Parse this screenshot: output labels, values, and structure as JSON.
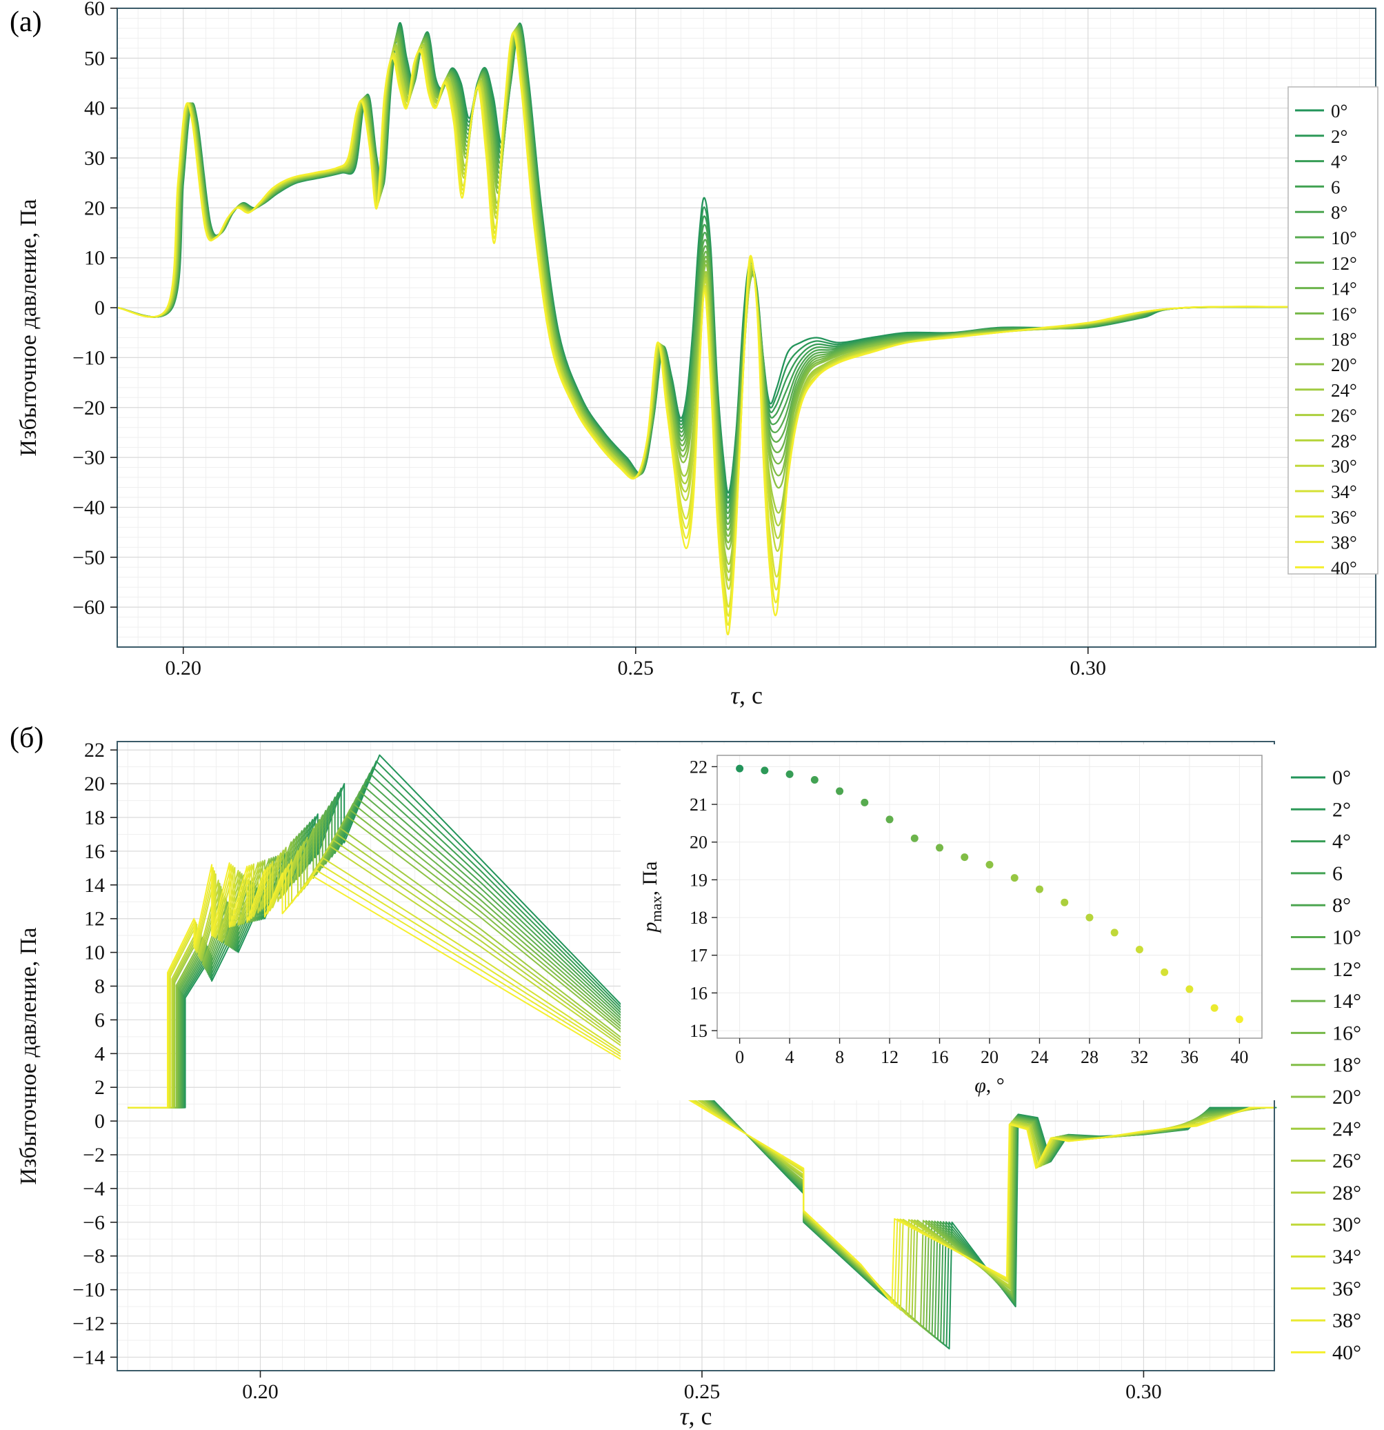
{
  "figure": {
    "panel_a_letter": "(a)",
    "panel_b_letter": "(б)"
  },
  "chart_data": [
    {
      "id": "a",
      "type": "line",
      "title": "",
      "xlabel": "τ, с",
      "ylabel": "Избыточное давление, Па",
      "xlim": [
        0.1927,
        0.3318
      ],
      "ylim": [
        -68,
        60
      ],
      "x_ticks": [
        0.2,
        0.25,
        0.3
      ],
      "y_ticks": [
        60,
        50,
        40,
        30,
        20,
        10,
        0,
        -10,
        -20,
        -30,
        -40,
        -50,
        -60
      ],
      "grid": true,
      "grid_minor_y": 2,
      "grid_minor_x": 0.0025,
      "legend_position": "right-inside-framed",
      "line_width": 2.3,
      "smooth": true,
      "color_start": "#22945a",
      "color_end": "#f5ef2e",
      "angles_deg": [
        0,
        2,
        4,
        6,
        8,
        10,
        12,
        14,
        16,
        18,
        20,
        24,
        26,
        28,
        30,
        34,
        36,
        38,
        40
      ],
      "legend_labels": [
        "0°",
        "2°",
        "4°",
        "6",
        "8°",
        "10°",
        "12°",
        "14°",
        "16°",
        "18°",
        "20°",
        "24°",
        "26°",
        "28°",
        "30°",
        "34°",
        "36°",
        "38°",
        "40°"
      ],
      "series_note": "curves for intermediate angles interpolate linearly between angle_0_curve and angle_40_curve by angle/40",
      "angle_0_curve": {
        "t": [
          0.1927,
          0.1988,
          0.2,
          0.2008,
          0.2016,
          0.203,
          0.2042,
          0.2055,
          0.2066,
          0.2078,
          0.209,
          0.2105,
          0.2125,
          0.215,
          0.2175,
          0.219,
          0.2199,
          0.2206,
          0.2214,
          0.2222,
          0.223,
          0.2239,
          0.2247,
          0.2255,
          0.2263,
          0.2271,
          0.2279,
          0.2287,
          0.2297,
          0.2307,
          0.2316,
          0.2325,
          0.2334,
          0.2343,
          0.2352,
          0.2362,
          0.2372,
          0.2382,
          0.2396,
          0.2415,
          0.244,
          0.2465,
          0.249,
          0.2508,
          0.252,
          0.253,
          0.254,
          0.2549,
          0.2556,
          0.2563,
          0.257,
          0.2576,
          0.2583,
          0.259,
          0.2597,
          0.2603,
          0.2611,
          0.2619,
          0.2626,
          0.2634,
          0.2641,
          0.2648,
          0.2656,
          0.2668,
          0.2682,
          0.27,
          0.2725,
          0.276,
          0.28,
          0.285,
          0.29,
          0.295,
          0.3,
          0.306,
          0.311,
          0.3318
        ],
        "p": [
          0,
          0,
          25,
          40,
          37,
          17,
          15,
          19,
          21,
          20,
          21,
          23,
          25,
          26,
          27,
          28,
          40,
          42,
          30,
          25,
          45,
          57,
          50,
          45,
          52,
          55,
          46,
          44,
          48,
          45,
          38,
          45,
          48,
          42,
          33,
          45,
          57,
          45,
          20,
          -5,
          -18,
          -25,
          -30,
          -33,
          -22,
          -8,
          -14,
          -22,
          -18,
          -5,
          14,
          22,
          12,
          -14,
          -30,
          -37,
          -25,
          -2,
          9,
          4,
          -10,
          -19,
          -16,
          -9,
          -7,
          -6,
          -7,
          -6,
          -5,
          -5,
          -4,
          -4,
          -4,
          -2,
          0,
          0
        ]
      },
      "angle_40_curve": {
        "t": [
          0.1927,
          0.1982,
          0.1994,
          0.2002,
          0.201,
          0.2024,
          0.2036,
          0.2049,
          0.206,
          0.2072,
          0.2084,
          0.2099,
          0.2119,
          0.2144,
          0.2169,
          0.2182,
          0.2191,
          0.2198,
          0.2206,
          0.2214,
          0.2222,
          0.2231,
          0.2239,
          0.2247,
          0.2255,
          0.2263,
          0.2271,
          0.2279,
          0.2289,
          0.2299,
          0.2308,
          0.2317,
          0.2326,
          0.2335,
          0.2344,
          0.2354,
          0.2364,
          0.2374,
          0.2388,
          0.2407,
          0.2432,
          0.2457,
          0.2482,
          0.25,
          0.2513,
          0.2524,
          0.2534,
          0.2543,
          0.255,
          0.2557,
          0.2564,
          0.257,
          0.2576,
          0.2583,
          0.259,
          0.2597,
          0.2603,
          0.2611,
          0.2619,
          0.2626,
          0.2634,
          0.2641,
          0.2648,
          0.2656,
          0.2668,
          0.2682,
          0.27,
          0.2725,
          0.276,
          0.28,
          0.285,
          0.29,
          0.295,
          0.3,
          0.3105,
          0.3318
        ],
        "p": [
          0,
          0,
          25,
          40,
          37,
          16,
          14,
          18,
          20,
          19,
          21,
          24,
          26,
          27,
          28,
          30,
          39,
          41,
          32,
          20,
          42,
          50,
          44,
          40,
          49,
          51,
          43,
          40,
          45,
          37,
          22,
          36,
          44,
          30,
          13,
          38,
          55,
          43,
          16,
          -8,
          -20,
          -27,
          -32,
          -34,
          -26,
          -7,
          -20,
          -33,
          -44,
          -48,
          -38,
          -15,
          3,
          -15,
          -42,
          -58,
          -65,
          -45,
          -12,
          10,
          0,
          -30,
          -52,
          -61,
          -35,
          -20,
          -14,
          -11,
          -9,
          -7,
          -6,
          -5,
          -4,
          -3,
          0,
          0
        ]
      }
    },
    {
      "id": "b",
      "type": "line",
      "title": "",
      "xlabel": "τ, с",
      "ylabel": "Избыточное давление, Па",
      "xlim": [
        0.1838,
        0.3148
      ],
      "ylim": [
        -14.8,
        22.5
      ],
      "x_ticks": [
        0.2,
        0.25,
        0.3
      ],
      "y_ticks": [
        22,
        20,
        18,
        16,
        14,
        12,
        10,
        8,
        6,
        4,
        2,
        0,
        -2,
        -4,
        -6,
        -8,
        -10,
        -12,
        -14
      ],
      "grid": true,
      "grid_minor_y": 1,
      "grid_minor_x": 0.0025,
      "legend_position": "right-outside",
      "line_width": 2.0,
      "smooth": false,
      "color_start": "#22945a",
      "color_end": "#f5ef2e",
      "angles_deg": [
        0,
        2,
        4,
        6,
        8,
        10,
        12,
        14,
        16,
        18,
        20,
        24,
        26,
        28,
        30,
        34,
        36,
        38,
        40
      ],
      "legend_labels": [
        "0°",
        "2°",
        "4°",
        "6",
        "8°",
        "10°",
        "12°",
        "14°",
        "16°",
        "18°",
        "20°",
        "24°",
        "26°",
        "28°",
        "30°",
        "34°",
        "36°",
        "38°",
        "40°"
      ],
      "series_note": "sawtooth waveforms; curves for intermediate angles interpolate linearly between angle_0_curve and angle_40_curve by angle/40",
      "angle_0_curve": {
        "t": [
          0.185,
          0.1915,
          0.1915,
          0.1945,
          0.1945,
          0.1975,
          0.1975,
          0.2005,
          0.2005,
          0.2035,
          0.2035,
          0.2065,
          0.2065,
          0.2095,
          0.2095,
          0.2135,
          0.225,
          0.2615,
          0.2615,
          0.27,
          0.27,
          0.278,
          0.2783,
          0.2855,
          0.2858,
          0.288,
          0.2895,
          0.2915,
          0.295,
          0.3,
          0.305,
          0.3075,
          0.315,
          0.3148
        ],
        "p": [
          0.8,
          0.8,
          7.3,
          9.8,
          8.3,
          11.5,
          10.0,
          13.5,
          12.0,
          16.0,
          14.0,
          18.2,
          15.8,
          20.0,
          16.5,
          21.7,
          15.5,
          -4.3,
          -6.0,
          -10.1,
          -10.1,
          -13.5,
          -6.0,
          -11.0,
          0.4,
          0.2,
          -2.4,
          -0.8,
          -0.9,
          -0.8,
          -0.5,
          0.8,
          0.8,
          0.8
        ]
      },
      "angle_40_curve": {
        "t": [
          0.185,
          0.1895,
          0.1895,
          0.1925,
          0.1925,
          0.1945,
          0.1945,
          0.1965,
          0.1965,
          0.1985,
          0.1985,
          0.2005,
          0.2005,
          0.2025,
          0.2025,
          0.206,
          0.225,
          0.2615,
          0.2615,
          0.268,
          0.268,
          0.2715,
          0.2718,
          0.2845,
          0.2848,
          0.2868,
          0.2878,
          0.2895,
          0.2915,
          0.295,
          0.3,
          0.306,
          0.312,
          0.3148
        ],
        "p": [
          0.8,
          0.8,
          8.8,
          12.0,
          10.3,
          15.2,
          11.0,
          15.3,
          11.5,
          15.1,
          11.8,
          14.9,
          12.1,
          14.7,
          12.3,
          14.5,
          8.6,
          -2.8,
          -5.3,
          -8.5,
          -8.5,
          -10.8,
          -5.8,
          -9.3,
          -0.2,
          -0.5,
          -2.8,
          -1.0,
          -1.2,
          -1.0,
          -0.6,
          -0.3,
          0.8,
          0.8
        ]
      },
      "inset": {
        "type": "scatter",
        "xlabel": "φ, °",
        "ylabel_parts": {
          "main": "p",
          "sub": "max",
          "rest": ", Па"
        },
        "xlim": [
          -1.8,
          41.8
        ],
        "ylim": [
          14.8,
          22.3
        ],
        "x_ticks": [
          0,
          4,
          8,
          12,
          16,
          20,
          24,
          28,
          32,
          36,
          40
        ],
        "y_ticks": [
          22,
          21,
          20,
          19,
          18,
          17,
          16,
          15
        ],
        "phi_deg": [
          0,
          2,
          4,
          6,
          8,
          10,
          12,
          14,
          16,
          18,
          20,
          22,
          24,
          26,
          28,
          30,
          32,
          34,
          36,
          38,
          40
        ],
        "p_max_pa": [
          21.95,
          21.9,
          21.8,
          21.65,
          21.35,
          21.05,
          20.6,
          20.1,
          19.85,
          19.6,
          19.4,
          19.05,
          18.75,
          18.4,
          18.0,
          17.6,
          17.15,
          16.55,
          16.1,
          15.6,
          15.3
        ]
      }
    }
  ]
}
